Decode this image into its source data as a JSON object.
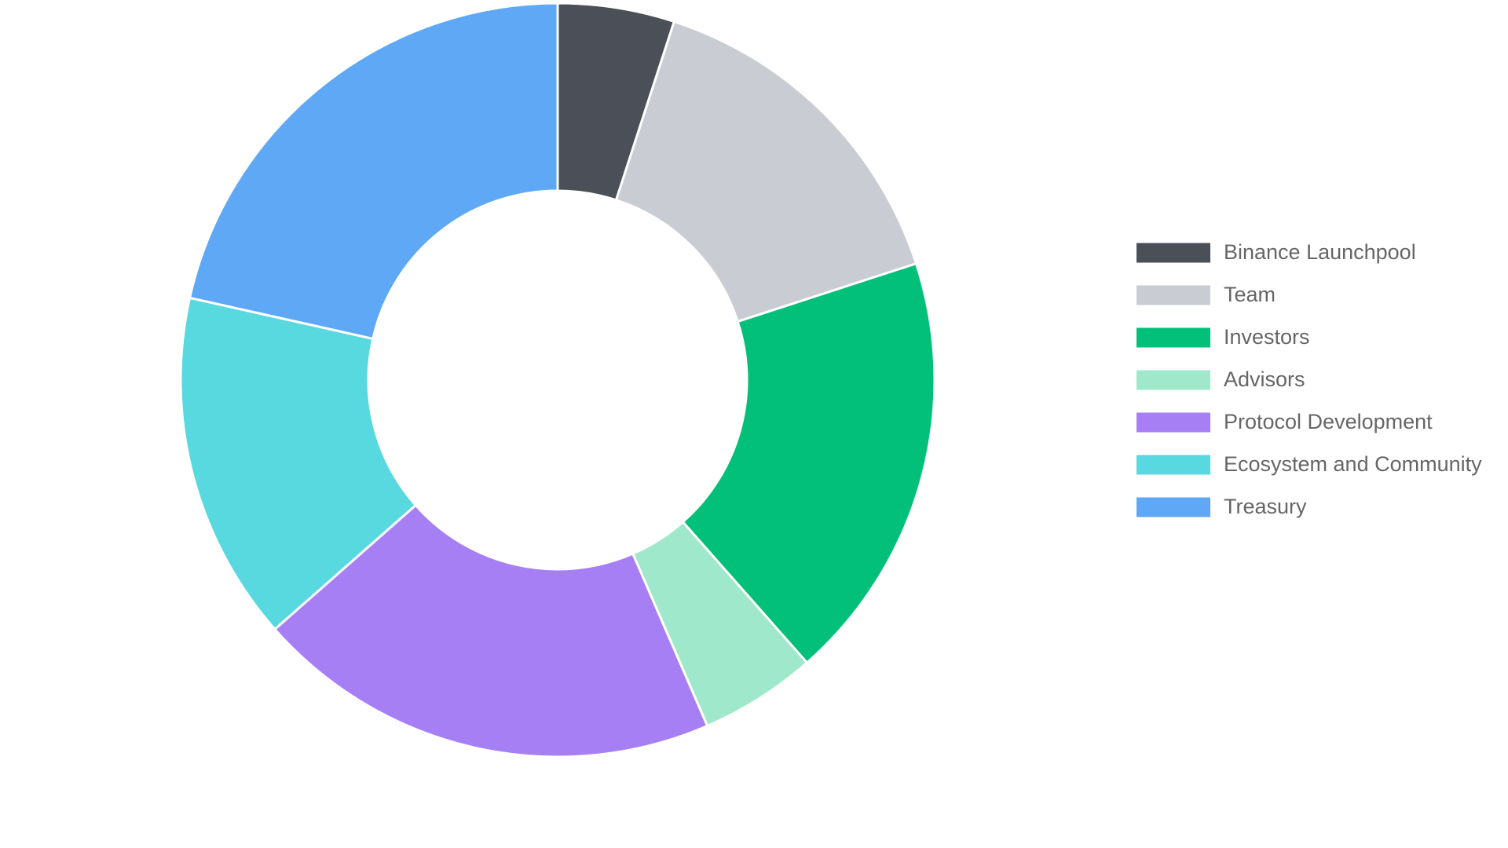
{
  "chart_data": {
    "type": "doughnut",
    "categories": [
      "Binance Launchpool",
      "Team",
      "Investors",
      "Advisors",
      "Protocol Development",
      "Ecosystem and Community",
      "Treasury"
    ],
    "values": [
      5,
      15,
      18.5,
      5,
      20,
      15,
      21.5
    ],
    "colors": [
      "#4a4f58",
      "#c9ccd2",
      "#02c07a",
      "#9fe8cc",
      "#a77ff5",
      "#58d9df",
      "#5ea8f5"
    ],
    "legend": "right"
  }
}
